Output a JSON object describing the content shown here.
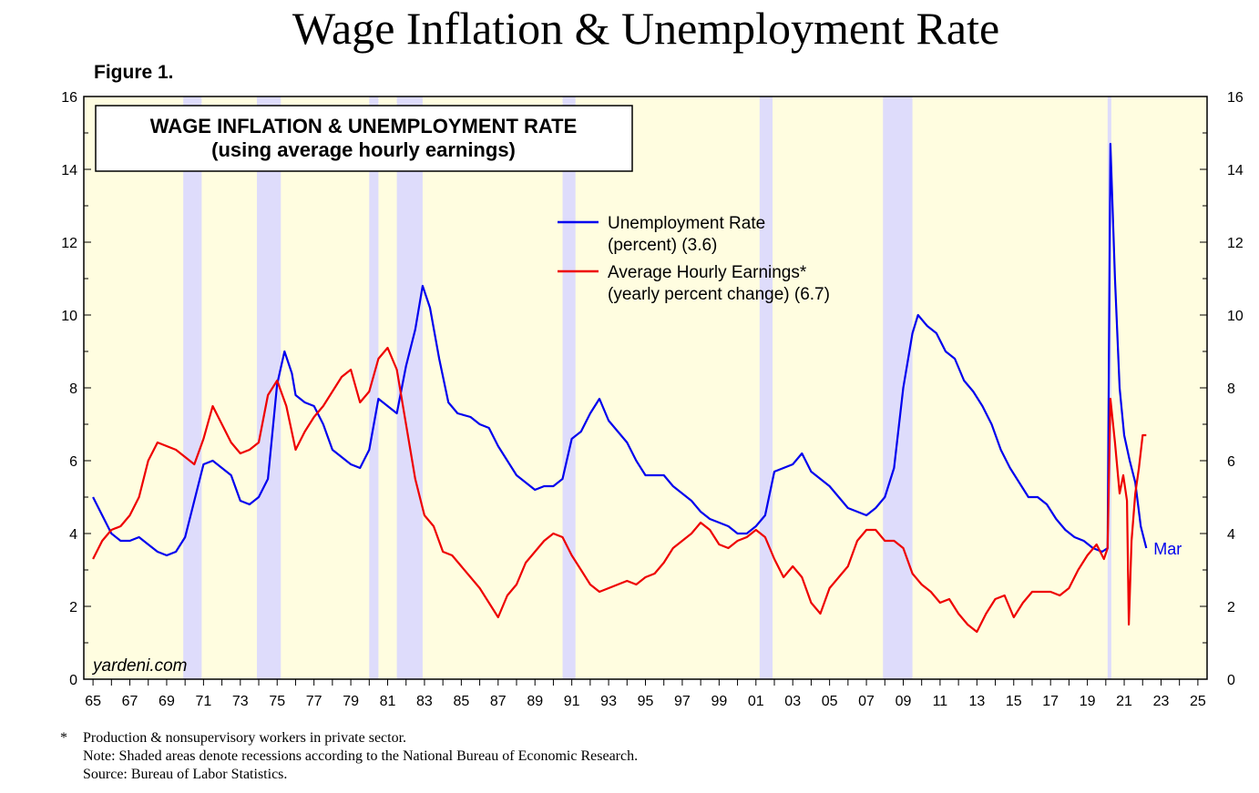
{
  "header": {
    "title": "Wage Inflation & Unemployment Rate",
    "figure_label": "Figure 1."
  },
  "chart_data": {
    "type": "line",
    "box_title_line1": "WAGE INFLATION & UNEMPLOYMENT RATE",
    "box_title_line2": "(using average hourly earnings)",
    "watermark": "yardeni.com",
    "end_label": "Mar",
    "xlim": [
      1964.5,
      2025.5
    ],
    "ylim": [
      0,
      16
    ],
    "y_ticks": [
      0,
      2,
      4,
      6,
      8,
      10,
      12,
      14,
      16
    ],
    "x_tick_labels": [
      "65",
      "67",
      "69",
      "71",
      "73",
      "75",
      "77",
      "79",
      "81",
      "83",
      "85",
      "87",
      "89",
      "91",
      "93",
      "95",
      "97",
      "99",
      "01",
      "03",
      "05",
      "07",
      "09",
      "11",
      "13",
      "15",
      "17",
      "19",
      "21",
      "23",
      "25"
    ],
    "grid": false,
    "legend_placement": "top-center",
    "recessions": [
      [
        1969.9,
        1970.9
      ],
      [
        1973.9,
        1975.2
      ],
      [
        1980.0,
        1980.5
      ],
      [
        1981.5,
        1982.9
      ],
      [
        1990.5,
        1991.2
      ],
      [
        2001.2,
        2001.9
      ],
      [
        2007.9,
        2009.5
      ],
      [
        2020.1,
        2020.3
      ]
    ],
    "series": [
      {
        "name_line1": "Unemployment Rate",
        "name_line2": "(percent) (3.6)",
        "color": "#0000ee",
        "points": [
          [
            1965,
            5.0
          ],
          [
            1965.5,
            4.5
          ],
          [
            1966,
            4.0
          ],
          [
            1966.5,
            3.8
          ],
          [
            1967,
            3.8
          ],
          [
            1967.5,
            3.9
          ],
          [
            1968,
            3.7
          ],
          [
            1968.5,
            3.5
          ],
          [
            1969,
            3.4
          ],
          [
            1969.5,
            3.5
          ],
          [
            1970,
            3.9
          ],
          [
            1970.5,
            4.9
          ],
          [
            1971,
            5.9
          ],
          [
            1971.5,
            6.0
          ],
          [
            1972,
            5.8
          ],
          [
            1972.5,
            5.6
          ],
          [
            1973,
            4.9
          ],
          [
            1973.5,
            4.8
          ],
          [
            1974,
            5.0
          ],
          [
            1974.5,
            5.5
          ],
          [
            1975,
            8.1
          ],
          [
            1975.4,
            9.0
          ],
          [
            1975.8,
            8.4
          ],
          [
            1976,
            7.8
          ],
          [
            1976.5,
            7.6
          ],
          [
            1977,
            7.5
          ],
          [
            1977.5,
            7.0
          ],
          [
            1978,
            6.3
          ],
          [
            1978.5,
            6.1
          ],
          [
            1979,
            5.9
          ],
          [
            1979.5,
            5.8
          ],
          [
            1980,
            6.3
          ],
          [
            1980.5,
            7.7
          ],
          [
            1981,
            7.5
          ],
          [
            1981.5,
            7.3
          ],
          [
            1982,
            8.6
          ],
          [
            1982.5,
            9.6
          ],
          [
            1982.9,
            10.8
          ],
          [
            1983.3,
            10.2
          ],
          [
            1983.8,
            8.8
          ],
          [
            1984.3,
            7.6
          ],
          [
            1984.8,
            7.3
          ],
          [
            1985.5,
            7.2
          ],
          [
            1986,
            7.0
          ],
          [
            1986.5,
            6.9
          ],
          [
            1987,
            6.4
          ],
          [
            1987.5,
            6.0
          ],
          [
            1988,
            5.6
          ],
          [
            1988.5,
            5.4
          ],
          [
            1989,
            5.2
          ],
          [
            1989.5,
            5.3
          ],
          [
            1990,
            5.3
          ],
          [
            1990.5,
            5.5
          ],
          [
            1991,
            6.6
          ],
          [
            1991.5,
            6.8
          ],
          [
            1992,
            7.3
          ],
          [
            1992.5,
            7.7
          ],
          [
            1993,
            7.1
          ],
          [
            1993.5,
            6.8
          ],
          [
            1994,
            6.5
          ],
          [
            1994.5,
            6.0
          ],
          [
            1995,
            5.6
          ],
          [
            1995.5,
            5.6
          ],
          [
            1996,
            5.6
          ],
          [
            1996.5,
            5.3
          ],
          [
            1997,
            5.1
          ],
          [
            1997.5,
            4.9
          ],
          [
            1998,
            4.6
          ],
          [
            1998.5,
            4.4
          ],
          [
            1999,
            4.3
          ],
          [
            1999.5,
            4.2
          ],
          [
            2000,
            4.0
          ],
          [
            2000.5,
            4.0
          ],
          [
            2001,
            4.2
          ],
          [
            2001.5,
            4.5
          ],
          [
            2002,
            5.7
          ],
          [
            2002.5,
            5.8
          ],
          [
            2003,
            5.9
          ],
          [
            2003.5,
            6.2
          ],
          [
            2004,
            5.7
          ],
          [
            2004.5,
            5.5
          ],
          [
            2005,
            5.3
          ],
          [
            2005.5,
            5.0
          ],
          [
            2006,
            4.7
          ],
          [
            2006.5,
            4.6
          ],
          [
            2007,
            4.5
          ],
          [
            2007.5,
            4.7
          ],
          [
            2008,
            5.0
          ],
          [
            2008.5,
            5.8
          ],
          [
            2009,
            8.0
          ],
          [
            2009.5,
            9.5
          ],
          [
            2009.8,
            10.0
          ],
          [
            2010.3,
            9.7
          ],
          [
            2010.8,
            9.5
          ],
          [
            2011.3,
            9.0
          ],
          [
            2011.8,
            8.8
          ],
          [
            2012.3,
            8.2
          ],
          [
            2012.8,
            7.9
          ],
          [
            2013.3,
            7.5
          ],
          [
            2013.8,
            7.0
          ],
          [
            2014.3,
            6.3
          ],
          [
            2014.8,
            5.8
          ],
          [
            2015.3,
            5.4
          ],
          [
            2015.8,
            5.0
          ],
          [
            2016.3,
            5.0
          ],
          [
            2016.8,
            4.8
          ],
          [
            2017.3,
            4.4
          ],
          [
            2017.8,
            4.1
          ],
          [
            2018.3,
            3.9
          ],
          [
            2018.8,
            3.8
          ],
          [
            2019.3,
            3.6
          ],
          [
            2019.8,
            3.5
          ],
          [
            2020.1,
            3.6
          ],
          [
            2020.25,
            14.7
          ],
          [
            2020.5,
            11.0
          ],
          [
            2020.75,
            8.0
          ],
          [
            2021,
            6.7
          ],
          [
            2021.3,
            6.0
          ],
          [
            2021.6,
            5.4
          ],
          [
            2021.9,
            4.2
          ],
          [
            2022.2,
            3.6
          ]
        ]
      },
      {
        "name_line1": "Average Hourly Earnings*",
        "name_line2": "(yearly percent change) (6.7)",
        "color": "#ee0000",
        "points": [
          [
            1965,
            3.3
          ],
          [
            1965.5,
            3.8
          ],
          [
            1966,
            4.1
          ],
          [
            1966.5,
            4.2
          ],
          [
            1967,
            4.5
          ],
          [
            1967.5,
            5.0
          ],
          [
            1968,
            6.0
          ],
          [
            1968.5,
            6.5
          ],
          [
            1969,
            6.4
          ],
          [
            1969.5,
            6.3
          ],
          [
            1970,
            6.1
          ],
          [
            1970.5,
            5.9
          ],
          [
            1971,
            6.6
          ],
          [
            1971.5,
            7.5
          ],
          [
            1972,
            7.0
          ],
          [
            1972.5,
            6.5
          ],
          [
            1973,
            6.2
          ],
          [
            1973.5,
            6.3
          ],
          [
            1974,
            6.5
          ],
          [
            1974.5,
            7.8
          ],
          [
            1975,
            8.2
          ],
          [
            1975.5,
            7.5
          ],
          [
            1976,
            6.3
          ],
          [
            1976.5,
            6.8
          ],
          [
            1977,
            7.2
          ],
          [
            1977.5,
            7.5
          ],
          [
            1978,
            7.9
          ],
          [
            1978.5,
            8.3
          ],
          [
            1979,
            8.5
          ],
          [
            1979.5,
            7.6
          ],
          [
            1980,
            7.9
          ],
          [
            1980.5,
            8.8
          ],
          [
            1981,
            9.1
          ],
          [
            1981.5,
            8.5
          ],
          [
            1982,
            7.0
          ],
          [
            1982.5,
            5.5
          ],
          [
            1983,
            4.5
          ],
          [
            1983.5,
            4.2
          ],
          [
            1984,
            3.5
          ],
          [
            1984.5,
            3.4
          ],
          [
            1985,
            3.1
          ],
          [
            1985.5,
            2.8
          ],
          [
            1986,
            2.5
          ],
          [
            1986.5,
            2.1
          ],
          [
            1987,
            1.7
          ],
          [
            1987.5,
            2.3
          ],
          [
            1988,
            2.6
          ],
          [
            1988.5,
            3.2
          ],
          [
            1989,
            3.5
          ],
          [
            1989.5,
            3.8
          ],
          [
            1990,
            4.0
          ],
          [
            1990.5,
            3.9
          ],
          [
            1991,
            3.4
          ],
          [
            1991.5,
            3.0
          ],
          [
            1992,
            2.6
          ],
          [
            1992.5,
            2.4
          ],
          [
            1993,
            2.5
          ],
          [
            1993.5,
            2.6
          ],
          [
            1994,
            2.7
          ],
          [
            1994.5,
            2.6
          ],
          [
            1995,
            2.8
          ],
          [
            1995.5,
            2.9
          ],
          [
            1996,
            3.2
          ],
          [
            1996.5,
            3.6
          ],
          [
            1997,
            3.8
          ],
          [
            1997.5,
            4.0
          ],
          [
            1998,
            4.3
          ],
          [
            1998.5,
            4.1
          ],
          [
            1999,
            3.7
          ],
          [
            1999.5,
            3.6
          ],
          [
            2000,
            3.8
          ],
          [
            2000.5,
            3.9
          ],
          [
            2001,
            4.1
          ],
          [
            2001.5,
            3.9
          ],
          [
            2002,
            3.3
          ],
          [
            2002.5,
            2.8
          ],
          [
            2003,
            3.1
          ],
          [
            2003.5,
            2.8
          ],
          [
            2004,
            2.1
          ],
          [
            2004.5,
            1.8
          ],
          [
            2005,
            2.5
          ],
          [
            2005.5,
            2.8
          ],
          [
            2006,
            3.1
          ],
          [
            2006.5,
            3.8
          ],
          [
            2007,
            4.1
          ],
          [
            2007.5,
            4.1
          ],
          [
            2008,
            3.8
          ],
          [
            2008.5,
            3.8
          ],
          [
            2009,
            3.6
          ],
          [
            2009.5,
            2.9
          ],
          [
            2010,
            2.6
          ],
          [
            2010.5,
            2.4
          ],
          [
            2011,
            2.1
          ],
          [
            2011.5,
            2.2
          ],
          [
            2012,
            1.8
          ],
          [
            2012.5,
            1.5
          ],
          [
            2013,
            1.3
          ],
          [
            2013.5,
            1.8
          ],
          [
            2014,
            2.2
          ],
          [
            2014.5,
            2.3
          ],
          [
            2015,
            1.7
          ],
          [
            2015.5,
            2.1
          ],
          [
            2016,
            2.4
          ],
          [
            2016.5,
            2.4
          ],
          [
            2017,
            2.4
          ],
          [
            2017.5,
            2.3
          ],
          [
            2018,
            2.5
          ],
          [
            2018.5,
            3.0
          ],
          [
            2019,
            3.4
          ],
          [
            2019.5,
            3.7
          ],
          [
            2019.9,
            3.3
          ],
          [
            2020.1,
            3.6
          ],
          [
            2020.25,
            7.7
          ],
          [
            2020.5,
            6.5
          ],
          [
            2020.75,
            5.1
          ],
          [
            2020.95,
            5.6
          ],
          [
            2021.15,
            4.9
          ],
          [
            2021.25,
            1.5
          ],
          [
            2021.4,
            3.8
          ],
          [
            2021.6,
            5.1
          ],
          [
            2021.8,
            5.8
          ],
          [
            2022.0,
            6.7
          ],
          [
            2022.2,
            6.7
          ]
        ]
      }
    ]
  },
  "footnotes": {
    "asterisk": "*",
    "line1": "Production & nonsupervisory workers in private sector.",
    "line2": "Note: Shaded areas denote recessions according to the National Bureau of Economic Research.",
    "line3": "Source: Bureau of Labor Statistics."
  }
}
